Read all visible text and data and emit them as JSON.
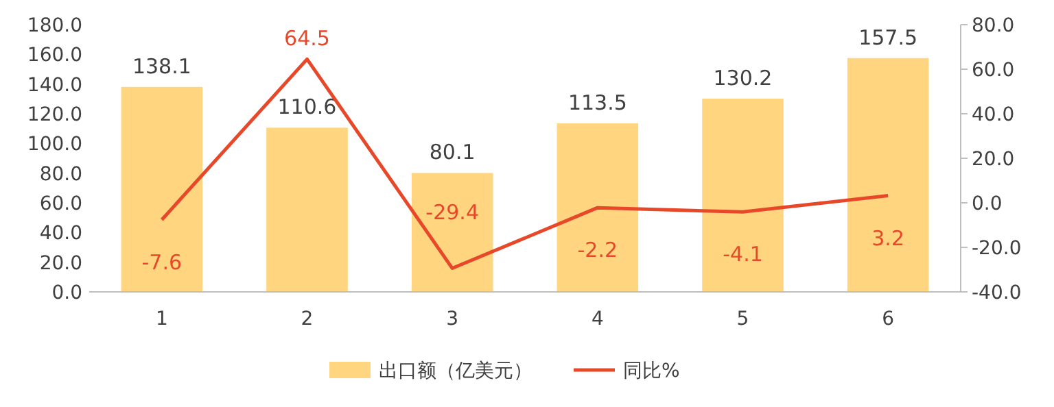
{
  "chart_data": {
    "type": "bar",
    "categories": [
      "1",
      "2",
      "3",
      "4",
      "5",
      "6"
    ],
    "series": [
      {
        "name": "出口额（亿美元）",
        "color": "#ffd580",
        "values": [
          138.1,
          110.6,
          80.1,
          113.5,
          130.2,
          157.5
        ]
      },
      {
        "name": "同比%",
        "type": "line",
        "axis": "y2",
        "color": "#e8482a",
        "values": [
          -7.6,
          64.5,
          -29.4,
          -2.2,
          -4.1,
          3.2
        ]
      }
    ],
    "ylim": [
      0,
      180
    ],
    "yticks": [
      {
        "value": 0,
        "label": "0.0"
      },
      {
        "value": 20,
        "label": "20.0"
      },
      {
        "value": 40,
        "label": "40.0"
      },
      {
        "value": 60,
        "label": "60.0"
      },
      {
        "value": 80,
        "label": "80.0"
      },
      {
        "value": 100,
        "label": "100.0"
      },
      {
        "value": 120,
        "label": "120.0"
      },
      {
        "value": 140,
        "label": "140.0"
      },
      {
        "value": 160,
        "label": "160.0"
      },
      {
        "value": 180,
        "label": "180.0"
      }
    ],
    "y2lim": [
      -40,
      80
    ],
    "y2ticks": [
      {
        "value": -40,
        "label": "-40.0"
      },
      {
        "value": -20,
        "label": "-20.0"
      },
      {
        "value": 0,
        "label": "0.0"
      },
      {
        "value": 20,
        "label": "20.0"
      },
      {
        "value": 40,
        "label": "40.0"
      },
      {
        "value": 60,
        "label": "60.0"
      },
      {
        "value": 80,
        "label": "80.0"
      }
    ],
    "data_labels": true,
    "legend": "bottom",
    "grid": false,
    "marker": "none"
  }
}
